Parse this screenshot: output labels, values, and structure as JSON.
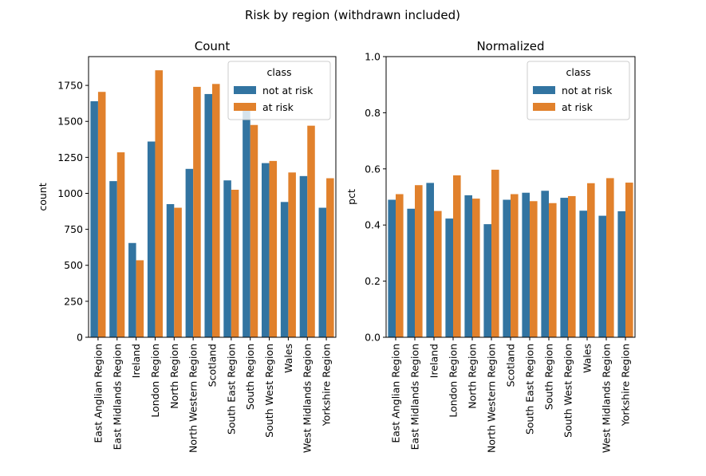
{
  "suptitle": "Risk by region (withdrawn included)",
  "colors": {
    "not_at_risk": "#3274a1",
    "at_risk": "#e1812c"
  },
  "chart_data": [
    {
      "type": "bar",
      "title": "Count",
      "xlabel": "",
      "ylabel": "count",
      "ylim": [
        0,
        1950
      ],
      "yticks": [
        0,
        250,
        500,
        750,
        1000,
        1250,
        1500,
        1750
      ],
      "legend": {
        "title": "class",
        "placement": "top-right",
        "labels": [
          "not at risk",
          "at risk"
        ]
      },
      "categories": [
        "East Anglian Region",
        "East Midlands Region",
        "Ireland",
        "London Region",
        "North Region",
        "North Western Region",
        "Scotland",
        "South East Region",
        "South Region",
        "South West Region",
        "Wales",
        "West Midlands Region",
        "Yorkshire Region"
      ],
      "series": [
        {
          "name": "not at risk",
          "values": [
            1640,
            1085,
            655,
            1360,
            925,
            1170,
            1690,
            1090,
            1610,
            1210,
            940,
            1120,
            900
          ]
        },
        {
          "name": "at risk",
          "values": [
            1705,
            1285,
            535,
            1855,
            900,
            1740,
            1760,
            1025,
            1475,
            1225,
            1145,
            1470,
            1105
          ]
        }
      ]
    },
    {
      "type": "bar",
      "title": "Normalized",
      "xlabel": "",
      "ylabel": "pct",
      "ylim": [
        0,
        1.0
      ],
      "yticks": [
        "0.0",
        "0.2",
        "0.4",
        "0.6",
        "0.8",
        "1.0"
      ],
      "legend": {
        "title": "class",
        "placement": "top-right",
        "labels": [
          "not at risk",
          "at risk"
        ]
      },
      "categories": [
        "East Anglian Region",
        "East Midlands Region",
        "Ireland",
        "London Region",
        "North Region",
        "North Western Region",
        "Scotland",
        "South East Region",
        "South Region",
        "South West Region",
        "Wales",
        "West Midlands Region",
        "Yorkshire Region"
      ],
      "series": [
        {
          "name": "not at risk",
          "values": [
            0.49,
            0.458,
            0.55,
            0.423,
            0.506,
            0.403,
            0.49,
            0.515,
            0.522,
            0.497,
            0.451,
            0.433,
            0.449
          ]
        },
        {
          "name": "at risk",
          "values": [
            0.51,
            0.542,
            0.45,
            0.577,
            0.494,
            0.597,
            0.51,
            0.485,
            0.478,
            0.503,
            0.549,
            0.567,
            0.551
          ]
        }
      ]
    }
  ]
}
